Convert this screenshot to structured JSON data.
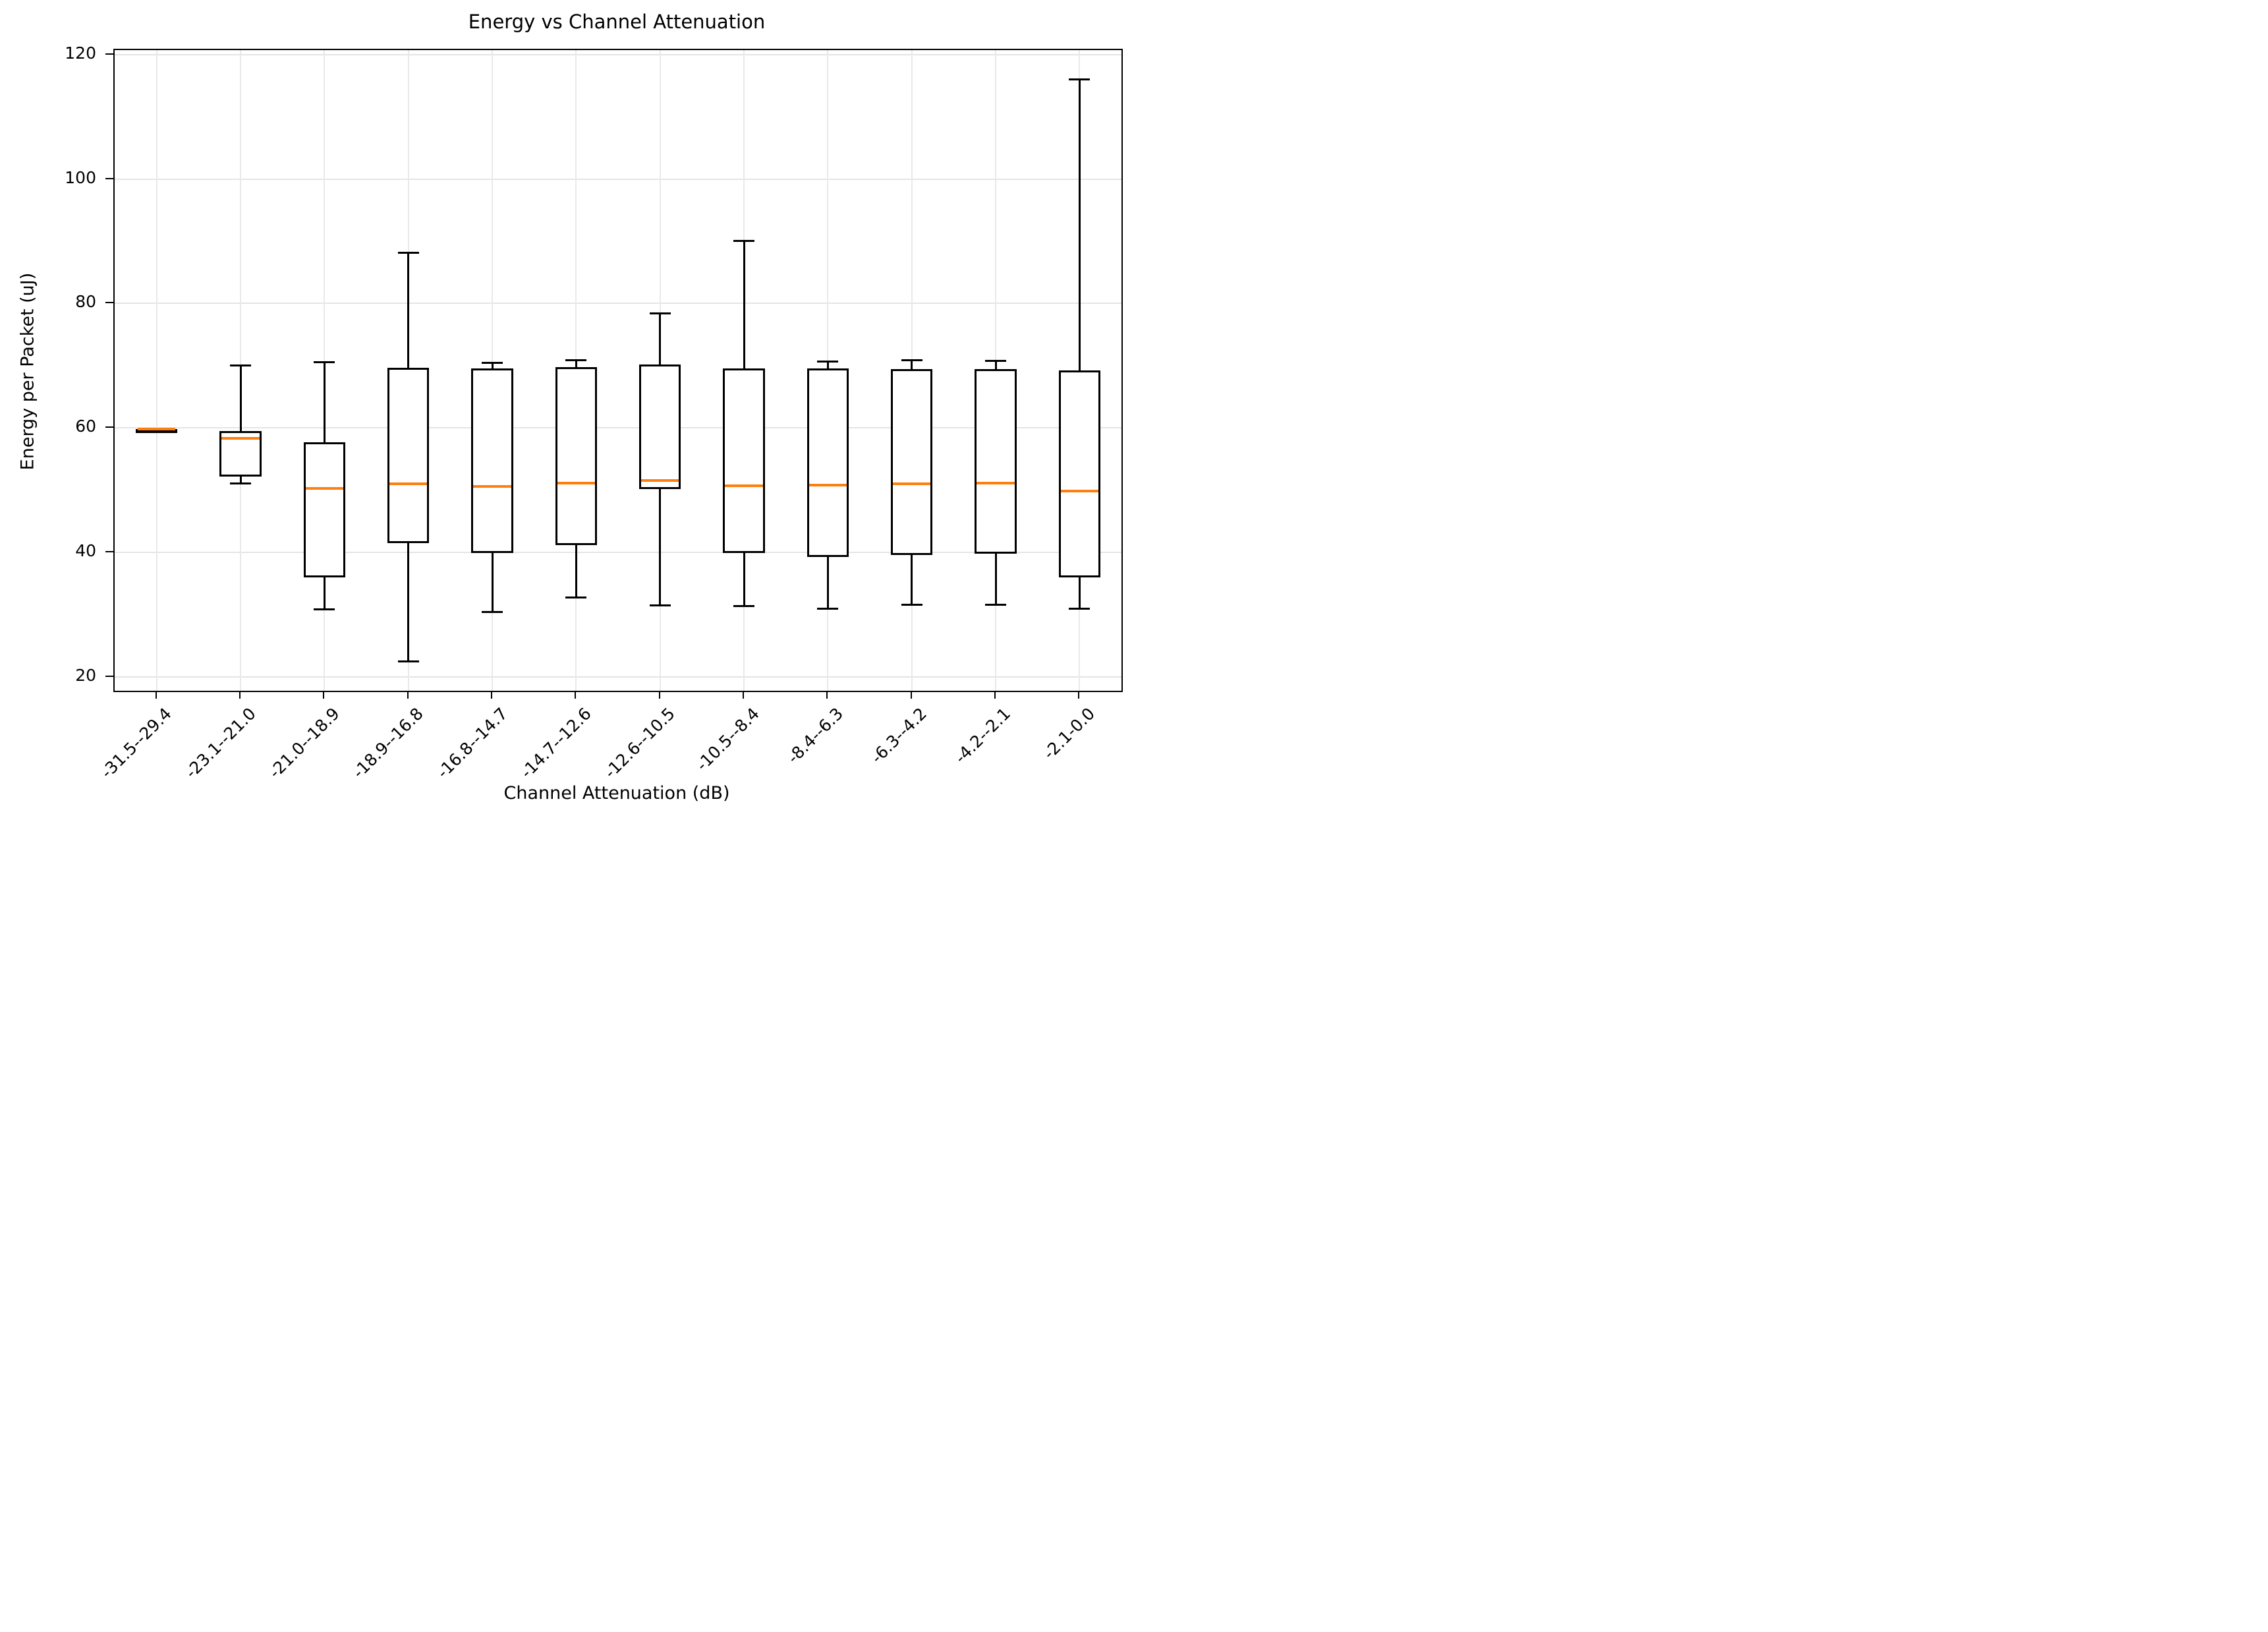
{
  "chart_data": {
    "type": "boxplot",
    "title": "Energy vs Channel Attenuation",
    "xlabel": "Channel Attenuation (dB)",
    "ylabel": "Energy per Packet (uJ)",
    "grid": true,
    "legend": "none",
    "yticks": [
      20,
      40,
      60,
      80,
      100,
      120
    ],
    "ylim": [
      17.8,
      120.7
    ],
    "box_color": "#000000",
    "median_color": "#ff7f0e",
    "background_color": "#ffffff",
    "categories": [
      "-31.5--29.4",
      "-23.1--21.0",
      "-21.0--18.9",
      "-18.9--16.8",
      "-16.8--14.7",
      "-14.7--12.6",
      "-12.6--10.5",
      "-10.5--8.4",
      "-8.4--6.3",
      "-6.3--4.2",
      "-4.2--2.1",
      "-2.1-0.0"
    ],
    "boxes": [
      {
        "label": "-31.5--29.4",
        "whisker_low": 59.7,
        "q1": 59.75,
        "median": 59.8,
        "q3": 59.85,
        "whisker_high": 59.9
      },
      {
        "label": "-23.1--21.0",
        "whisker_low": 51.1,
        "q1": 52.2,
        "median": 58.3,
        "q3": 59.5,
        "whisker_high": 70.0
      },
      {
        "label": "-21.0--18.9",
        "whisker_low": 30.9,
        "q1": 36.0,
        "median": 50.3,
        "q3": 57.7,
        "whisker_high": 70.6
      },
      {
        "label": "-18.9--16.8",
        "whisker_low": 22.5,
        "q1": 41.5,
        "median": 51.0,
        "q3": 69.7,
        "whisker_high": 88.1
      },
      {
        "label": "-16.8--14.7",
        "whisker_low": 30.4,
        "q1": 39.9,
        "median": 50.6,
        "q3": 69.6,
        "whisker_high": 70.5
      },
      {
        "label": "-14.7--12.6",
        "whisker_low": 32.8,
        "q1": 41.2,
        "median": 51.2,
        "q3": 69.8,
        "whisker_high": 70.9
      },
      {
        "label": "-12.6--10.5",
        "whisker_low": 31.5,
        "q1": 50.2,
        "median": 51.6,
        "q3": 70.2,
        "whisker_high": 78.4
      },
      {
        "label": "-10.5--8.4",
        "whisker_low": 31.4,
        "q1": 39.9,
        "median": 50.7,
        "q3": 69.6,
        "whisker_high": 90.0
      },
      {
        "label": "-8.4--6.3",
        "whisker_low": 31.0,
        "q1": 39.3,
        "median": 50.8,
        "q3": 69.6,
        "whisker_high": 70.7
      },
      {
        "label": "-6.3--4.2",
        "whisker_low": 31.6,
        "q1": 39.6,
        "median": 51.0,
        "q3": 69.5,
        "whisker_high": 70.9
      },
      {
        "label": "-4.2--2.1",
        "whisker_low": 31.6,
        "q1": 39.8,
        "median": 51.2,
        "q3": 69.5,
        "whisker_high": 70.8
      },
      {
        "label": "-2.1-0.0",
        "whisker_low": 31.0,
        "q1": 36.0,
        "median": 49.9,
        "q3": 69.2,
        "whisker_high": 116.0
      }
    ]
  }
}
